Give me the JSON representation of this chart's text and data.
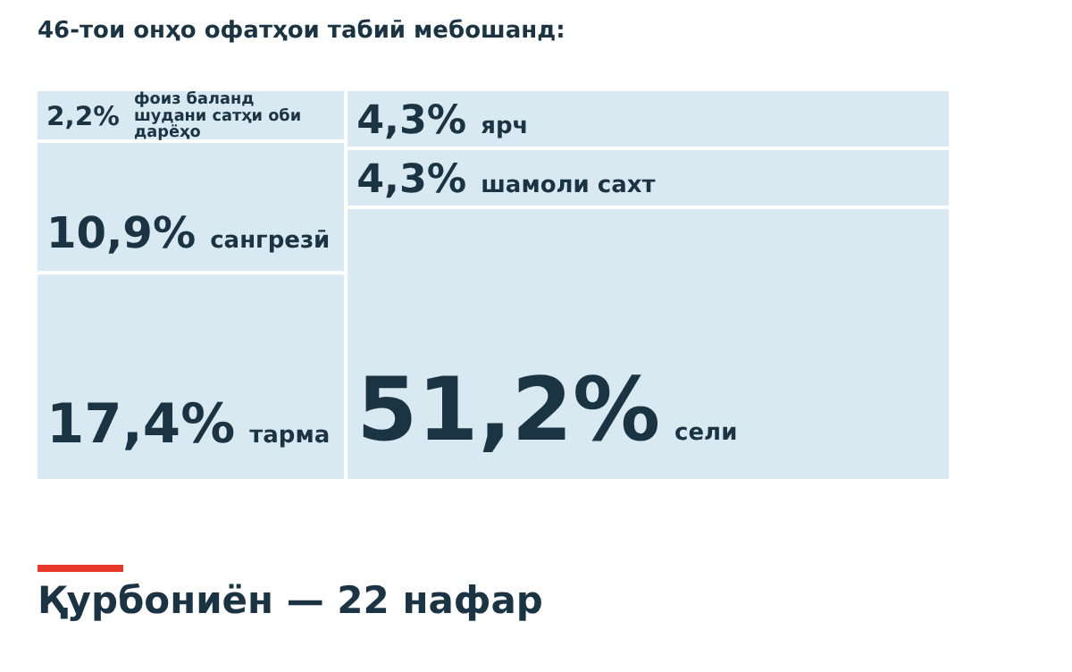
{
  "chart_data": {
    "type": "other",
    "title": "46-тои онҳо офатҳои табиӣ мебошанд:",
    "categories": [
      "фоиз баланд шудани сатҳи оби дарёҳо",
      "сангрезӣ",
      "тарма",
      "ярч",
      "шамоли сахт",
      "сели"
    ],
    "values": [
      2.2,
      10.9,
      17.4,
      4.3,
      4.3,
      51.2
    ],
    "value_labels": [
      "2,2%",
      "10,9%",
      "17,4%",
      "4,3%",
      "4,3%",
      "51,2%"
    ],
    "color": "#d9e9f1",
    "annotations": [
      "Қурбониён — 22 нафар"
    ]
  }
}
